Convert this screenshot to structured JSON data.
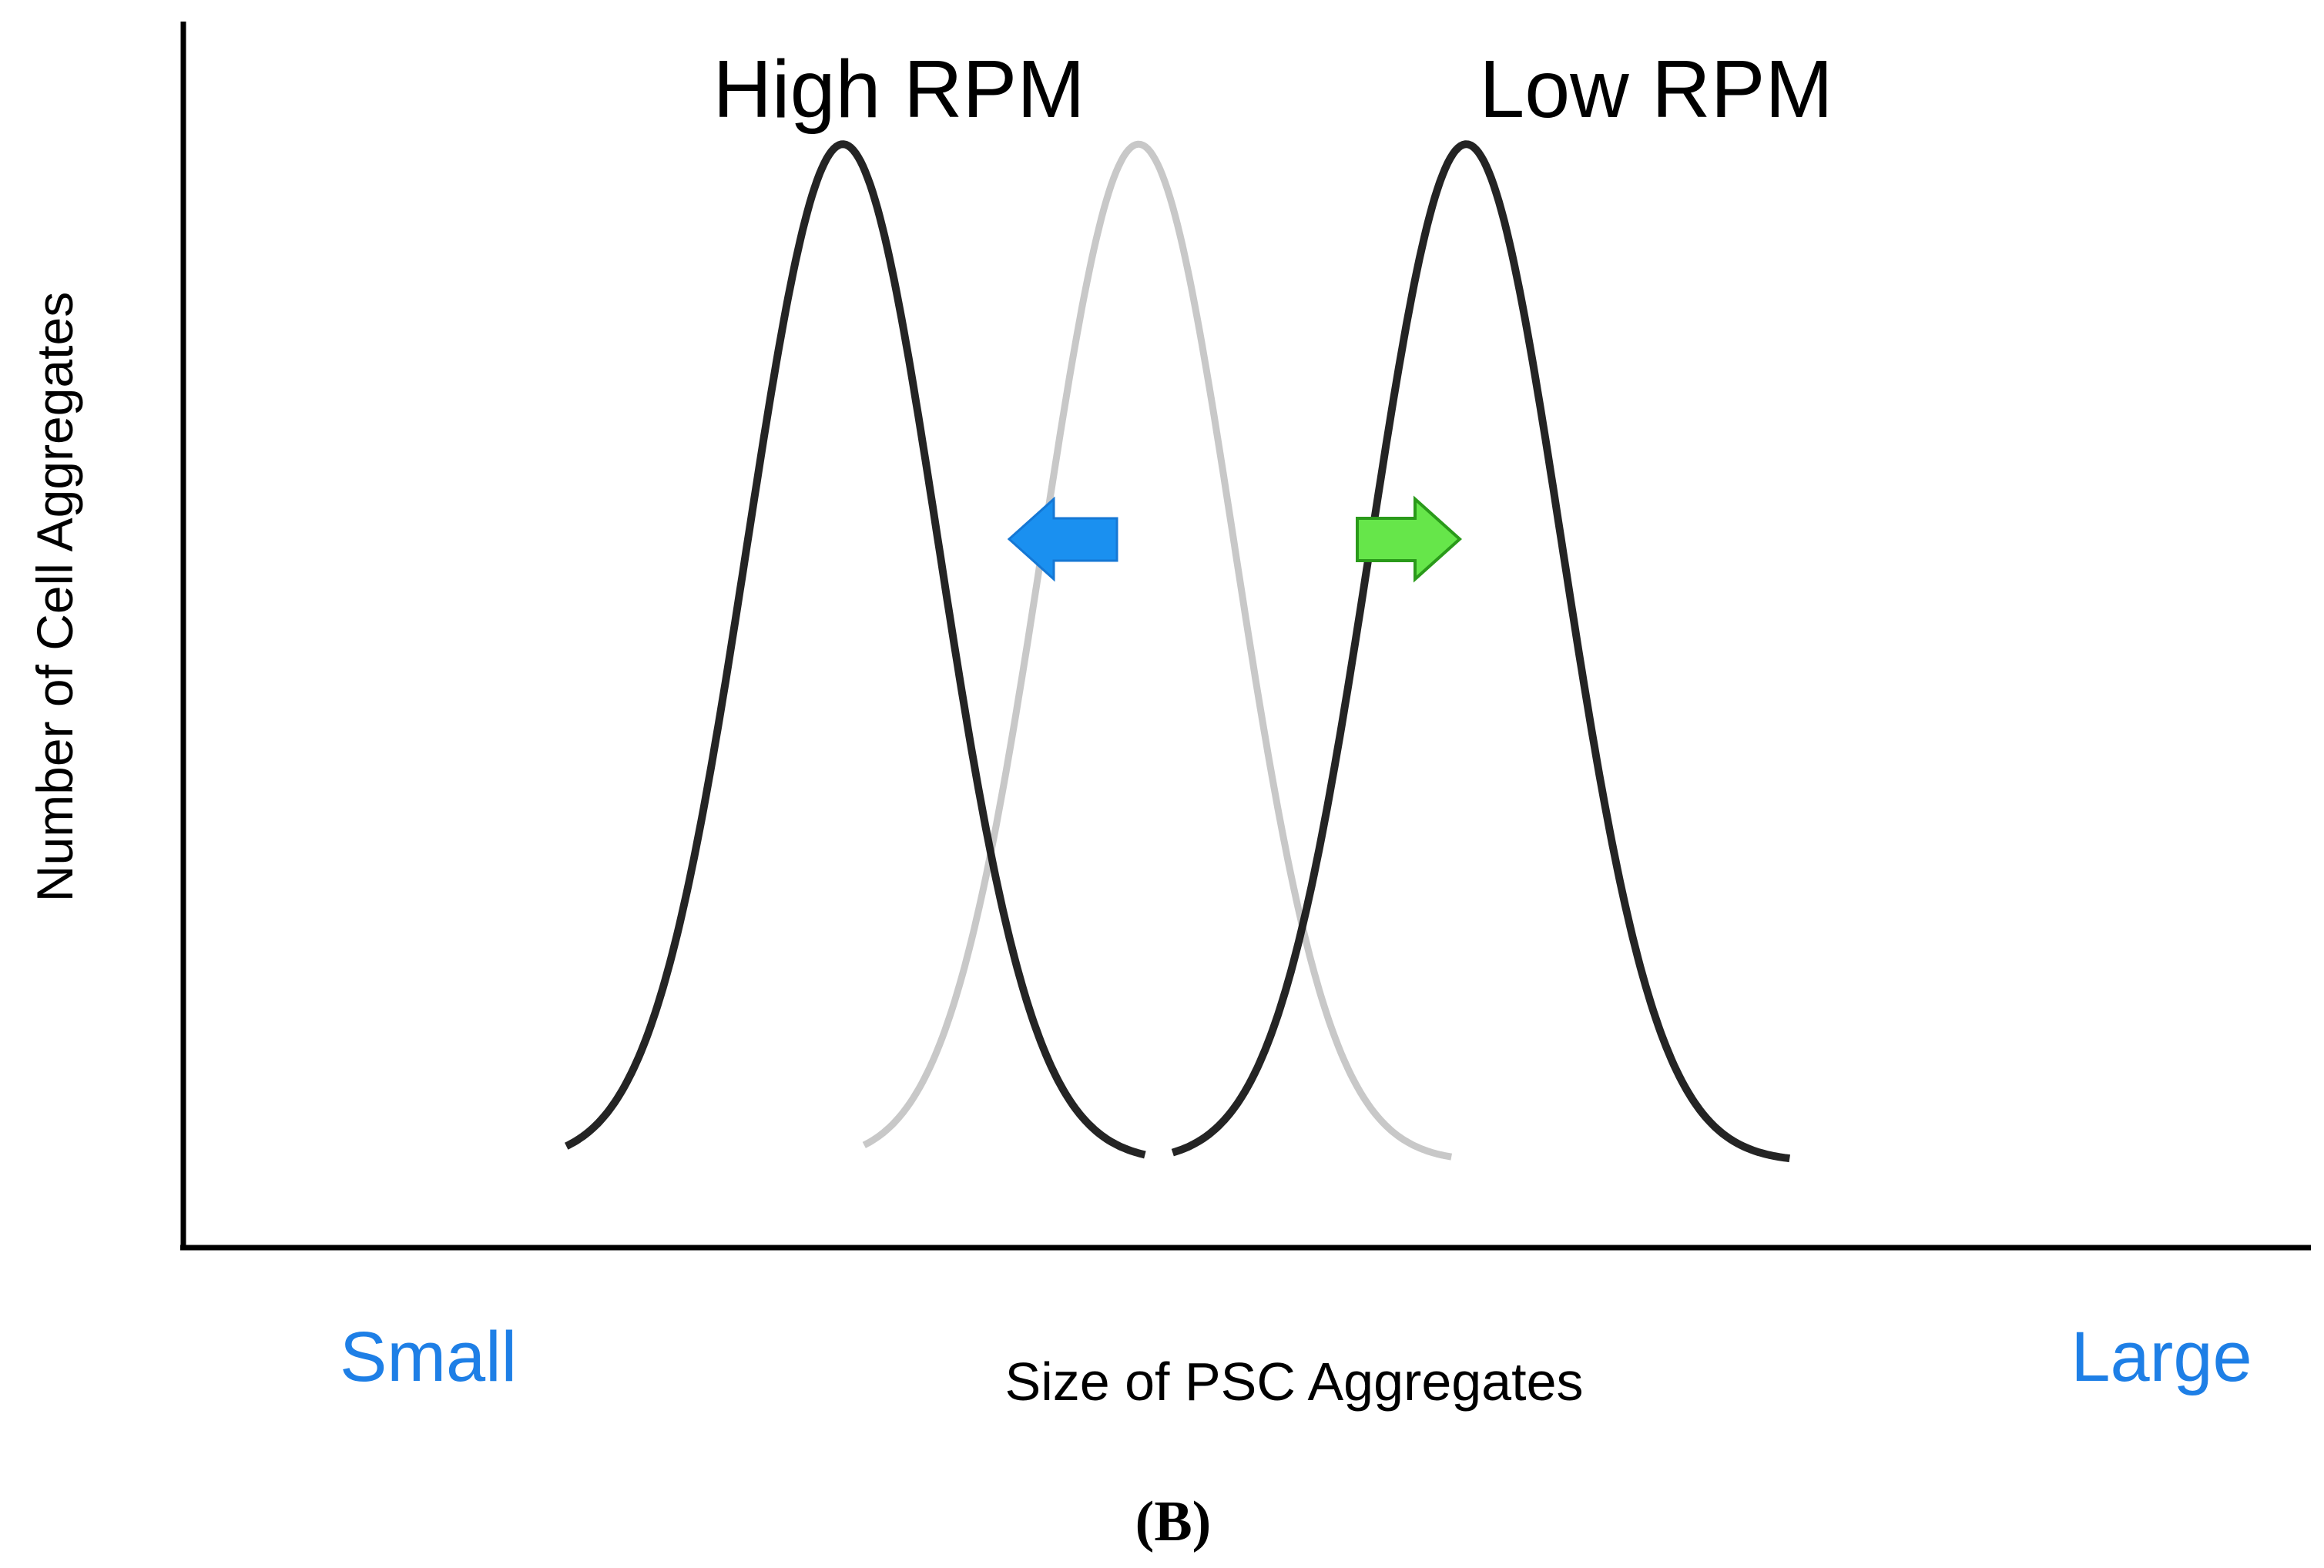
{
  "chart_data": {
    "type": "line",
    "title": "",
    "xlabel": "Size of PSC Aggregates",
    "ylabel": "Number of Cell Aggregates",
    "x_axis_ends": {
      "left": "Small",
      "right": "Large"
    },
    "xlim": [
      0,
      100
    ],
    "ylim": [
      0,
      100
    ],
    "grid": false,
    "legend": "none",
    "series": [
      {
        "name": "High RPM",
        "role": "shifted-left",
        "color": "#111111",
        "shape": "gaussian",
        "center": 31,
        "sigma": 4.5,
        "peak": 90,
        "baseline": 7,
        "x_range": [
          18,
          45.2
        ]
      },
      {
        "role": "reference",
        "color": "#c8c8c8",
        "shape": "gaussian",
        "center": 44.9,
        "sigma": 4.5,
        "peak": 90,
        "baseline": 7,
        "x_range": [
          32,
          59.6
        ]
      },
      {
        "name": "Low RPM",
        "role": "shifted-right",
        "color": "#111111",
        "shape": "gaussian",
        "center": 60.3,
        "sigma": 4.5,
        "peak": 90,
        "baseline": 7,
        "x_range": [
          46.5,
          75.5
        ]
      }
    ],
    "arrows": [
      {
        "direction": "left",
        "meaning": "towards-small",
        "color": "#1a90f0"
      },
      {
        "direction": "right",
        "meaning": "towards-large",
        "color": "#66e64a"
      }
    ]
  },
  "panel_label": "(B)",
  "colors": {
    "axis": "#000000",
    "end_labels": "#1e7fe6",
    "curve_dark": "#111111",
    "curve_light": "#c8c8c8",
    "arrow_left_fill": "#1a90f0",
    "arrow_right_fill": "#66e64a",
    "arrow_right_stroke": "#2a9a1a"
  }
}
